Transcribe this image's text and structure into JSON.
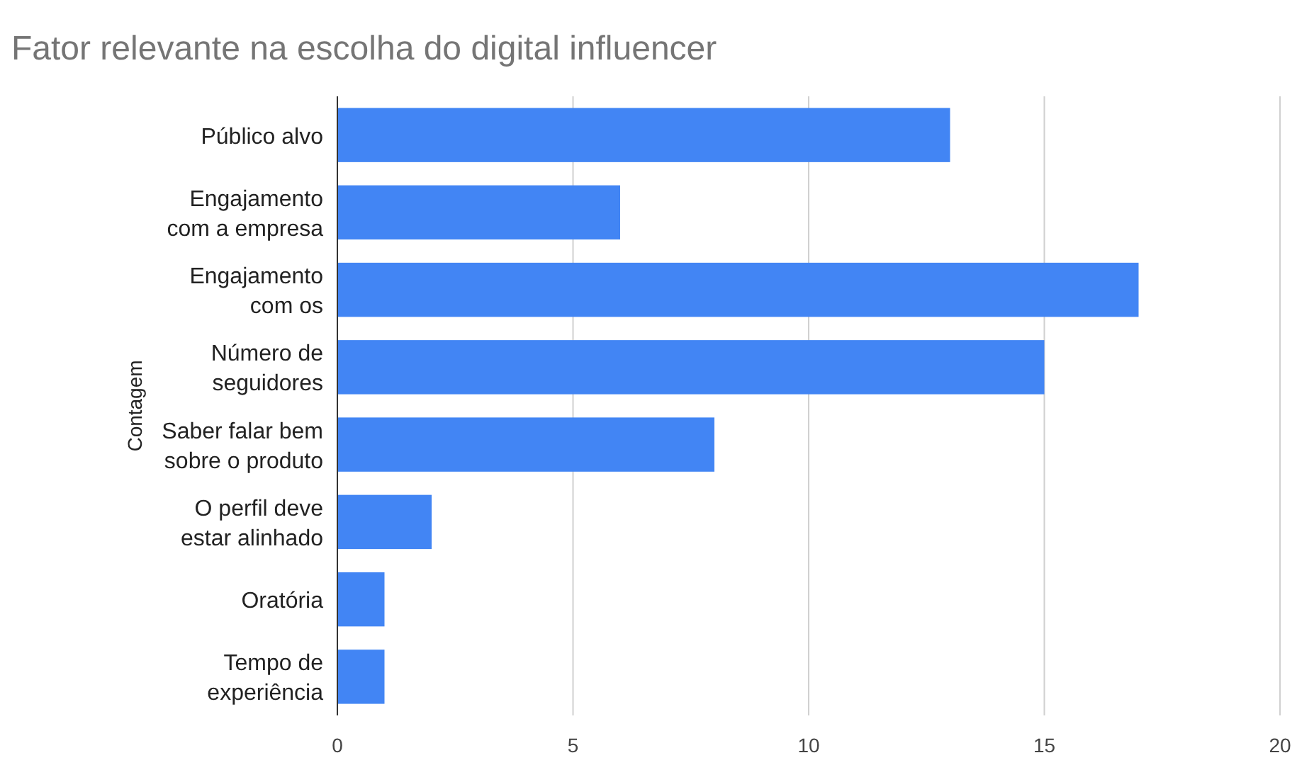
{
  "chart_data": {
    "type": "bar",
    "orientation": "horizontal",
    "title": "Fator relevante na escolha do digital influencer",
    "ylabel": "Contagem",
    "categories": [
      "Público alvo",
      "Engajamento\ncom a empresa",
      "Engajamento\ncom os",
      "Número de\nseguidores",
      "Saber falar bem\nsobre o produto",
      "O perfil deve\nestar alinhado",
      "Oratória",
      "Tempo de\nexperiência"
    ],
    "values": [
      13,
      6,
      17,
      15,
      8,
      2,
      1,
      1
    ],
    "color": "#4285f4",
    "xlim": [
      0,
      20
    ],
    "xticks": [
      0,
      5,
      10,
      15,
      20
    ],
    "grid": "x"
  }
}
